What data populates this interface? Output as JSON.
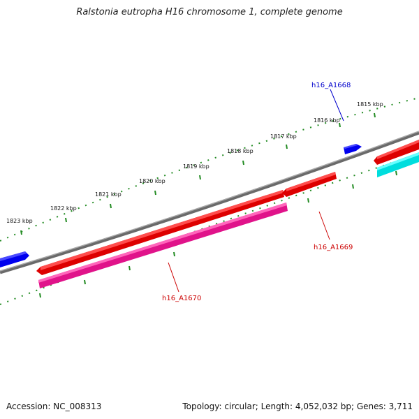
{
  "title": "Ralstonia eutropha H16 chromosome 1, complete genome",
  "footer": {
    "accession": "Accession: NC_008313",
    "summary": "Topology: circular; Length: 4,052,032 bp; Genes: 3,711"
  },
  "ticks": [
    "1815 kbp",
    "1816 kbp",
    "1817 kbp",
    "1818 kbp",
    "1819 kbp",
    "1820 kbp",
    "1821 kbp",
    "1822 kbp",
    "1823 kbp"
  ],
  "genes": [
    {
      "label": "h16_A1668",
      "color": "#0000cc"
    },
    {
      "label": "h16_A1669",
      "color": "#cc0000"
    },
    {
      "label": "h16_A1670",
      "color": "#cc0000"
    }
  ],
  "colors": {
    "backbone": "#808080",
    "tick": "#228b22",
    "forward_gene": "#ff0000",
    "reverse_gene": "#0000ff",
    "rna_gene": "#ff1493",
    "other_gene": "#00e5e5"
  }
}
